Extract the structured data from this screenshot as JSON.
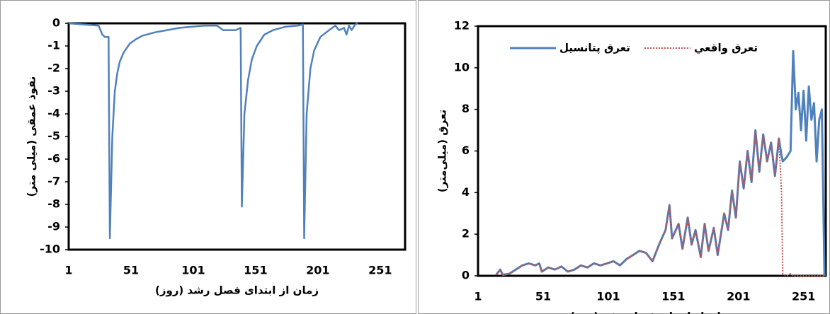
{
  "chart_data": [
    {
      "type": "line",
      "y_label": "نفوذ عمقی (میلی متر)",
      "x_label": "زمان از ابتدای فصل رشد (روز)",
      "x": [
        1,
        25,
        28,
        30,
        33,
        34,
        36,
        38,
        40,
        42,
        45,
        50,
        55,
        60,
        70,
        80,
        90,
        100,
        110,
        120,
        125,
        135,
        139,
        140,
        142,
        145,
        148,
        152,
        158,
        165,
        175,
        185,
        189,
        190,
        192,
        195,
        198,
        203,
        210,
        215,
        218,
        222,
        224,
        226,
        228,
        231,
        233
      ],
      "values": [
        0,
        -0.1,
        -0.5,
        -0.6,
        -0.6,
        -9.5,
        -5,
        -3,
        -2.2,
        -1.7,
        -1.3,
        -0.9,
        -0.7,
        -0.55,
        -0.4,
        -0.3,
        -0.2,
        -0.15,
        -0.1,
        -0.1,
        -0.3,
        -0.3,
        -0.2,
        -8.1,
        -4,
        -2.5,
        -1.6,
        -1,
        -0.5,
        -0.3,
        -0.15,
        -0.1,
        -0.05,
        -9.5,
        -4,
        -2,
        -1.2,
        -0.6,
        -0.3,
        -0.1,
        -0.3,
        -0.2,
        -0.5,
        -0.1,
        -0.3,
        -0.05,
        0
      ],
      "color": "#4f81bd",
      "xlim": [
        1,
        271
      ],
      "ylim": [
        -10,
        0
      ],
      "xticks": [
        1,
        51,
        101,
        151,
        201,
        251
      ],
      "yticks": [
        -10,
        -9,
        -8,
        -7,
        -6,
        -5,
        -4,
        -3,
        -2,
        -1,
        0
      ]
    },
    {
      "type": "line",
      "y_label": "تعرق (میلی‌متر)",
      "x_label": "زمان از ابتدای فصل رشد (روز)",
      "x": [
        15,
        18,
        20,
        25,
        30,
        35,
        40,
        45,
        48,
        50,
        55,
        60,
        65,
        70,
        75,
        80,
        85,
        90,
        95,
        100,
        105,
        110,
        115,
        120,
        125,
        130,
        135,
        140,
        145,
        148,
        150,
        155,
        158,
        162,
        165,
        168,
        172,
        175,
        178,
        182,
        185,
        190,
        193,
        196,
        199,
        202,
        205,
        208,
        211,
        214,
        217,
        220,
        223,
        226,
        229,
        232,
        234,
        235,
        238,
        241,
        243,
        245,
        247,
        249,
        251,
        253,
        255,
        257,
        259,
        261,
        263,
        265,
        267
      ],
      "series": [
        {
          "name": "تعرق پتانسیل",
          "color": "#4f81bd",
          "values": [
            0.05,
            0.3,
            0.05,
            0.1,
            0.3,
            0.5,
            0.6,
            0.5,
            0.6,
            0.2,
            0.4,
            0.3,
            0.45,
            0.2,
            0.3,
            0.5,
            0.4,
            0.6,
            0.5,
            0.6,
            0.7,
            0.5,
            0.8,
            1.0,
            1.2,
            1.1,
            0.7,
            1.5,
            2.2,
            3.4,
            1.8,
            2.5,
            1.3,
            2.8,
            1.5,
            2.2,
            0.9,
            2.5,
            1.2,
            2.3,
            1.0,
            3.0,
            2.2,
            4.1,
            2.8,
            5.5,
            4.2,
            6.0,
            4.5,
            7.0,
            5.0,
            6.8,
            5.5,
            6.4,
            4.8,
            6.6,
            5.8,
            5.5,
            5.7,
            6.0,
            10.8,
            8.0,
            8.8,
            7.0,
            8.9,
            6.5,
            9.1,
            7.5,
            8.3,
            5.5,
            7.5,
            8.0,
            0
          ]
        },
        {
          "name": "تعرق واقعي",
          "color": "#c0504d",
          "values": [
            0.05,
            0.3,
            0.05,
            0.1,
            0.3,
            0.5,
            0.6,
            0.5,
            0.6,
            0.2,
            0.4,
            0.3,
            0.45,
            0.2,
            0.3,
            0.5,
            0.4,
            0.6,
            0.5,
            0.6,
            0.7,
            0.5,
            0.8,
            1.0,
            1.2,
            1.1,
            0.7,
            1.5,
            2.2,
            3.4,
            1.8,
            2.5,
            1.3,
            2.8,
            1.5,
            2.2,
            0.9,
            2.5,
            1.2,
            2.3,
            1.0,
            3.0,
            2.2,
            4.1,
            2.8,
            5.5,
            4.2,
            6.0,
            4.5,
            7.0,
            5.0,
            6.8,
            5.5,
            6.4,
            4.8,
            6.6,
            4.0,
            0.1,
            0,
            0.1,
            0,
            0,
            0,
            0,
            0,
            0,
            0,
            0,
            0,
            0,
            0,
            0,
            0
          ]
        }
      ],
      "xlim": [
        1,
        268
      ],
      "ylim": [
        0,
        12
      ],
      "xticks": [
        1,
        51,
        101,
        151,
        201,
        251
      ],
      "yticks": [
        0,
        2,
        4,
        6,
        8,
        10,
        12
      ]
    }
  ]
}
